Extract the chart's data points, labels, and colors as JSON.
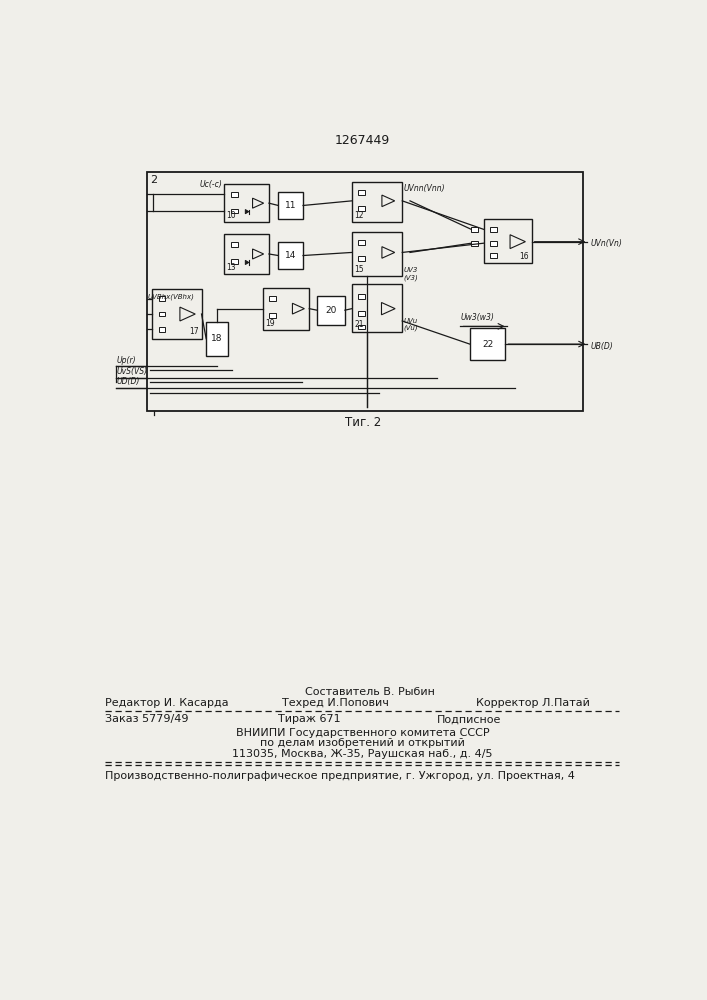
{
  "title_number": "1267449",
  "fig_caption": "Τиг. 2",
  "bg_color": "#f0efea",
  "line_color": "#1a1a1a",
  "footer": {
    "sestavitel": "Составитель В. Рыбин",
    "redaktor": "Редактор И. Касарда",
    "tehred": "Техред И.Попович",
    "korrektor": "Корректор Л.Патай",
    "zakaz": "Заказ 5779/49",
    "tirazh": "Тираж 671",
    "podpisnoe": "Подписное",
    "vnipi1": "ВНИИПИ Государственного комитета СССР",
    "vnipi2": "по делам изобретений и открытий",
    "vnipi3": "113035, Москва, Ж-35, Раушская наб., д. 4/5",
    "proizv": "Производственно-полиграфическое предприятие, г. Ужгород, ул. Проектная, 4"
  }
}
